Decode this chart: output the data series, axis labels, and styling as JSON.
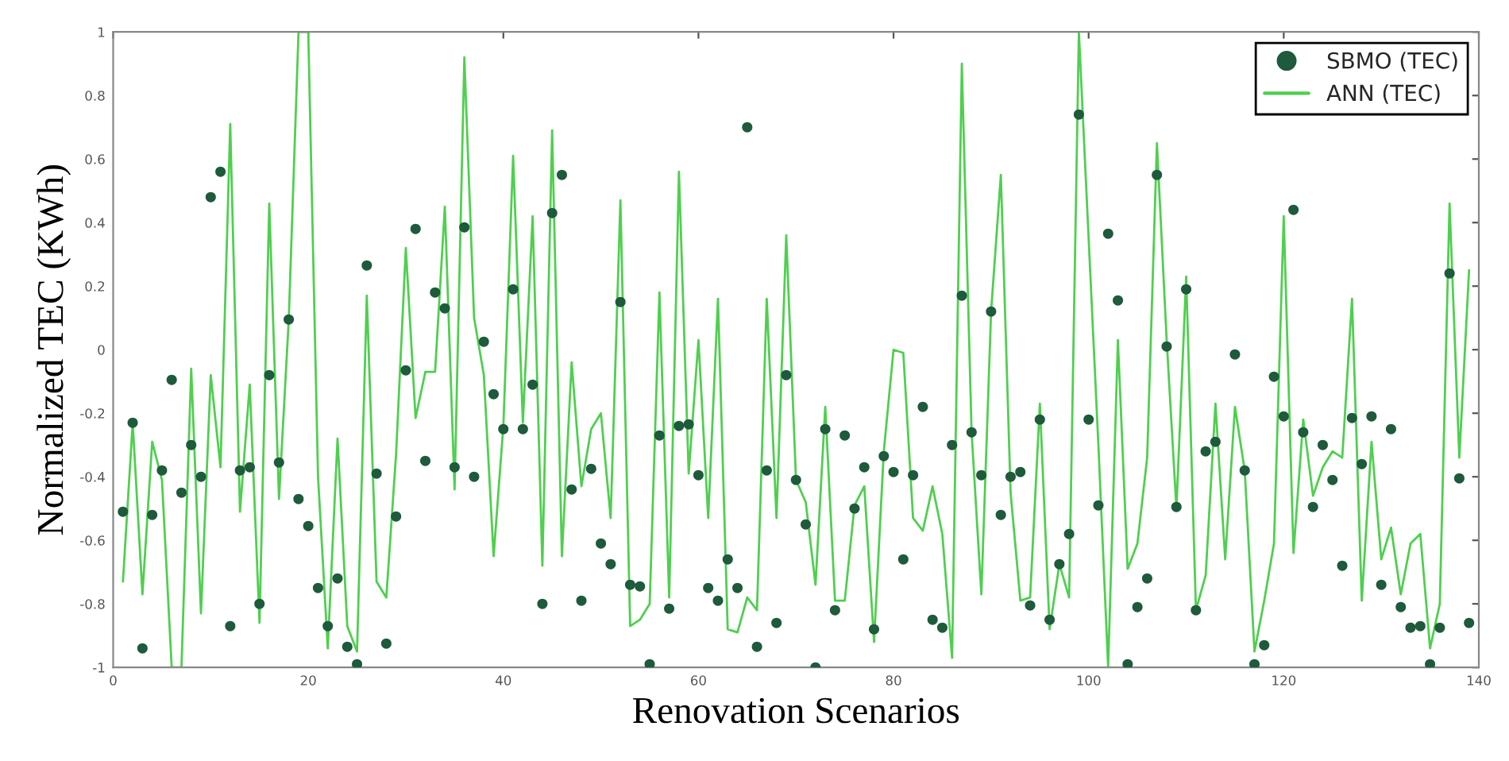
{
  "chart_data": {
    "type": "scatter",
    "xlabel": "Renovation Scenarios",
    "ylabel": "Normalized TEC (KWh)",
    "xlim": [
      0,
      140
    ],
    "xticks": [
      0,
      20,
      40,
      60,
      80,
      100,
      120,
      140
    ],
    "ylim": [
      -1,
      1
    ],
    "yticks": [
      -1,
      -0.8,
      -0.6,
      -0.4,
      -0.2,
      0,
      0.2,
      0.4,
      0.6,
      0.8,
      1
    ],
    "grid": false,
    "legend": "top right",
    "series": [
      {
        "name": "SBMO (TEC)",
        "marker": "circle",
        "color": "#1e5a3c",
        "x": [
          1,
          2,
          3,
          4,
          5,
          6,
          7,
          8,
          9,
          10,
          11,
          12,
          13,
          14,
          15,
          16,
          17,
          18,
          19,
          20,
          21,
          22,
          23,
          24,
          25,
          26,
          27,
          28,
          29,
          30,
          31,
          32,
          33,
          34,
          35,
          36,
          37,
          38,
          39,
          40,
          41,
          42,
          43,
          44,
          45,
          46,
          47,
          48,
          49,
          50,
          51,
          52,
          53,
          54,
          55,
          56,
          57,
          58,
          59,
          60,
          61,
          62,
          63,
          64,
          65,
          66,
          67,
          68,
          69,
          70,
          71,
          72,
          73,
          74,
          75,
          76,
          77,
          78,
          79,
          80,
          81,
          82,
          83,
          84,
          85,
          86,
          87,
          88,
          89,
          90,
          91,
          92,
          93,
          94,
          95,
          96,
          97,
          98,
          99,
          100,
          101,
          102,
          103,
          104,
          105,
          106,
          107,
          108,
          109,
          110,
          111,
          112,
          113,
          114,
          115,
          116,
          117,
          118,
          119,
          120,
          121,
          122,
          123,
          124,
          125,
          126,
          127,
          128,
          129,
          130,
          131,
          132,
          133,
          134,
          135,
          136,
          137,
          138,
          139
        ],
        "values": [
          -0.51,
          -0.23,
          -0.94,
          -0.52,
          -0.38,
          -0.095,
          -0.45,
          -0.3,
          -0.4,
          0.48,
          0.56,
          -0.87,
          -0.38,
          -0.37,
          -0.8,
          -0.08,
          -0.355,
          0.095,
          -0.47,
          -0.555,
          -0.75,
          -0.87,
          -0.72,
          -0.935,
          -0.99,
          0.265,
          -0.39,
          -0.925,
          -0.525,
          -0.065,
          0.38,
          -0.35,
          0.18,
          0.13,
          -0.37,
          0.385,
          -0.4,
          0.025,
          -0.14,
          -0.25,
          0.19,
          -0.25,
          -0.11,
          -0.8,
          0.43,
          0.55,
          -0.44,
          -0.79,
          -0.375,
          -0.61,
          -0.675,
          0.15,
          -0.74,
          -0.745,
          -0.99,
          -0.27,
          -0.815,
          -0.24,
          -0.235,
          -0.395,
          -0.75,
          -0.79,
          -0.66,
          -0.75,
          0.7,
          -0.935,
          -0.38,
          -0.86,
          -0.08,
          -0.41,
          -0.55,
          -1.0,
          -0.25,
          -0.82,
          -0.27,
          -0.5,
          -0.37,
          -0.88,
          -0.335,
          -0.385,
          -0.66,
          -0.395,
          -0.18,
          -0.85,
          -0.875,
          -0.3,
          0.17,
          -0.26,
          -0.395,
          0.12,
          -0.52,
          -0.4,
          -0.385,
          -0.805,
          -0.22,
          -0.85,
          -0.675,
          -0.58,
          0.74,
          -0.22,
          -0.49,
          0.365,
          0.155,
          -0.99,
          -0.81,
          -0.72,
          0.55,
          0.01,
          -0.495,
          0.19,
          -0.82,
          -0.32,
          -0.29,
          null,
          -0.015,
          -0.38,
          -0.99,
          -0.93,
          -0.085,
          -0.21,
          0.44,
          -0.26,
          -0.495,
          -0.3,
          -0.41,
          -0.68,
          -0.215,
          -0.36,
          -0.21,
          -0.74,
          -0.25,
          -0.81,
          -0.875,
          -0.87,
          -0.99,
          -0.875,
          0.24,
          -0.405,
          -0.86
        ]
      },
      {
        "name": "ANN (TEC)",
        "type": "line",
        "marker": "none",
        "line_style": "solid",
        "color": "#4fcf4f",
        "x": [
          1,
          2,
          3,
          4,
          5,
          6,
          7,
          8,
          9,
          10,
          11,
          12,
          13,
          14,
          15,
          16,
          17,
          18,
          19,
          20,
          21,
          22,
          23,
          24,
          25,
          26,
          27,
          28,
          29,
          30,
          31,
          32,
          33,
          34,
          35,
          36,
          37,
          38,
          39,
          40,
          41,
          42,
          43,
          44,
          45,
          46,
          47,
          48,
          49,
          50,
          51,
          52,
          53,
          54,
          55,
          56,
          57,
          58,
          59,
          60,
          61,
          62,
          63,
          64,
          65,
          66,
          67,
          68,
          69,
          70,
          71,
          72,
          73,
          74,
          75,
          76,
          77,
          78,
          79,
          80,
          81,
          82,
          83,
          84,
          85,
          86,
          87,
          88,
          89,
          90,
          91,
          92,
          93,
          94,
          95,
          96,
          97,
          98,
          99,
          100,
          101,
          102,
          103,
          104,
          105,
          106,
          107,
          108,
          109,
          110,
          111,
          112,
          113,
          114,
          115,
          116,
          117,
          118,
          119,
          120,
          121,
          122,
          123,
          124,
          125,
          126,
          127,
          128,
          129,
          130,
          131,
          132,
          133,
          134,
          135,
          136,
          137,
          138,
          139
        ],
        "values": [
          -0.73,
          -0.23,
          -0.77,
          -0.29,
          -0.41,
          -1.0,
          -1.0,
          -0.06,
          -0.83,
          -0.08,
          -0.37,
          0.71,
          -0.51,
          -0.11,
          -0.86,
          0.46,
          -0.47,
          0.095,
          1.0,
          1.0,
          -0.4,
          -0.94,
          -0.28,
          -0.87,
          -0.95,
          0.17,
          -0.73,
          -0.78,
          -0.33,
          0.32,
          -0.215,
          -0.07,
          -0.07,
          0.45,
          -0.44,
          0.92,
          0.1,
          -0.08,
          -0.65,
          -0.24,
          0.61,
          -0.23,
          0.42,
          -0.68,
          0.69,
          -0.65,
          -0.04,
          -0.43,
          -0.25,
          -0.2,
          -0.53,
          0.47,
          -0.87,
          -0.85,
          -0.8,
          0.18,
          -0.78,
          0.56,
          -0.39,
          0.03,
          -0.53,
          0.16,
          -0.88,
          -0.89,
          -0.78,
          -0.82,
          0.16,
          -0.53,
          0.36,
          -0.41,
          -0.48,
          -0.74,
          -0.18,
          -0.79,
          -0.79,
          -0.49,
          -0.43,
          -0.92,
          -0.32,
          0.0,
          -0.01,
          -0.53,
          -0.57,
          -0.43,
          -0.58,
          -0.97,
          0.9,
          -0.26,
          -0.77,
          0.12,
          0.55,
          -0.45,
          -0.79,
          -0.78,
          -0.17,
          -0.88,
          -0.675,
          -0.78,
          1.0,
          0.35,
          -0.3,
          -1.0,
          0.03,
          -0.69,
          -0.61,
          -0.34,
          0.65,
          0.03,
          -0.5,
          0.23,
          -0.82,
          -0.71,
          -0.17,
          -0.66,
          -0.18,
          -0.38,
          -0.95,
          -0.79,
          -0.61,
          0.42,
          -0.64,
          -0.22,
          -0.46,
          -0.37,
          -0.32,
          -0.34,
          0.16,
          -0.79,
          -0.29,
          -0.66,
          -0.56,
          -0.77,
          -0.61,
          -0.58,
          -0.94,
          -0.8,
          0.46,
          -0.34,
          0.25
        ]
      }
    ]
  }
}
